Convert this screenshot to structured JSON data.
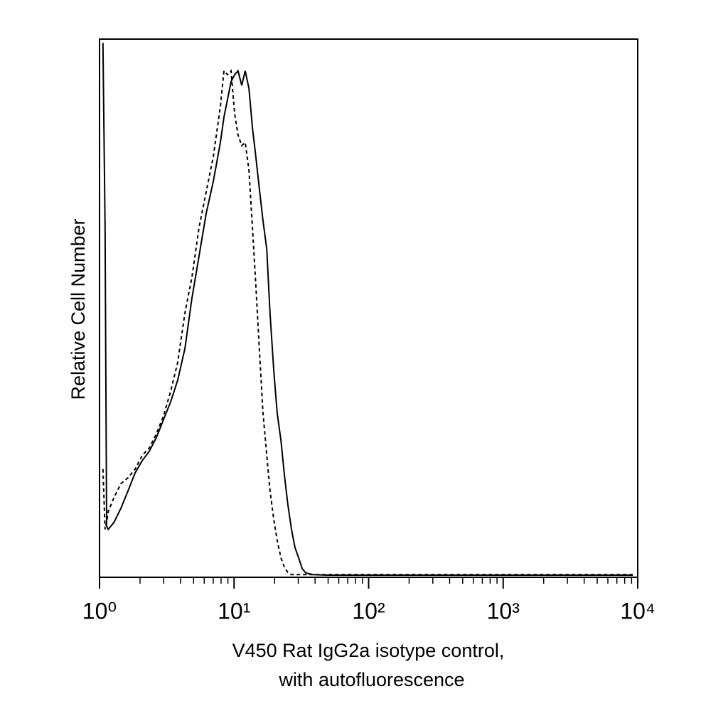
{
  "chart_data": {
    "type": "line",
    "xlabel": [
      "V450 Rat IgG2a isotype control,",
      "with autofluorescence"
    ],
    "ylabel": "Relative Cell Number",
    "xscale": "log",
    "xminor": true,
    "xlim": [
      1,
      10000
    ],
    "xticks": [
      {
        "value": 1,
        "label": "10⁰"
      },
      {
        "value": 10,
        "label": "10¹"
      },
      {
        "value": 100,
        "label": "10²"
      },
      {
        "value": 1000,
        "label": "10³"
      },
      {
        "value": 10000,
        "label": "10⁴"
      }
    ],
    "ylim": [
      0,
      100
    ],
    "x": [
      1.06,
      1.1,
      1.13,
      1.16,
      1.28,
      1.44,
      1.63,
      1.84,
      2.08,
      2.34,
      2.65,
      2.99,
      3.38,
      3.81,
      4.31,
      4.86,
      5.49,
      6.2,
      7.01,
      7.91,
      8.41,
      8.94,
      9.5,
      10.1,
      10.7,
      11.4,
      12.1,
      12.9,
      13.7,
      14.5,
      15.5,
      16.4,
      17.5,
      18.5,
      19.7,
      20.9,
      22.3,
      23.7,
      25.1,
      26.7,
      28.4,
      30.2,
      32.1,
      34.1,
      38.5,
      49.1,
      79.8,
      270,
      910,
      3070,
      9190
    ],
    "series": [
      {
        "color": "#000000",
        "dash": "none",
        "values": [
          99.3,
          65.0,
          9.5,
          8.9,
          10.2,
          12.8,
          16.1,
          19.4,
          21.7,
          23.4,
          26.0,
          29.3,
          32.6,
          36.6,
          42.5,
          51.8,
          59.7,
          67.6,
          73.6,
          80.8,
          85.5,
          88.8,
          92.1,
          93.4,
          94.1,
          91.4,
          94.1,
          90.8,
          83.5,
          78.2,
          71.6,
          66.3,
          61.0,
          49.1,
          38.6,
          30.6,
          25.4,
          18.8,
          13.5,
          8.9,
          5.5,
          3.6,
          1.6,
          0.8,
          0.5,
          0.4,
          0.4,
          0.4,
          0.4,
          0.4,
          0.4
        ]
      },
      {
        "color": "#000000",
        "dash": "5,4",
        "values": [
          20.1,
          8.9,
          10.2,
          12.2,
          14.8,
          17.4,
          18.5,
          20.1,
          22.7,
          24.0,
          26.7,
          30.0,
          34.6,
          39.9,
          49.1,
          55.7,
          65.0,
          71.6,
          78.2,
          87.5,
          94.1,
          93.4,
          94.1,
          86.1,
          82.2,
          80.2,
          80.8,
          75.6,
          65.0,
          54.4,
          41.2,
          30.6,
          22.7,
          16.1,
          10.8,
          6.9,
          3.6,
          1.8,
          0.9,
          0.5,
          0.5,
          0.5,
          0.5,
          0.5,
          0.5,
          0.5,
          0.5,
          0.5,
          0.5,
          0.5,
          0.5
        ]
      }
    ]
  }
}
